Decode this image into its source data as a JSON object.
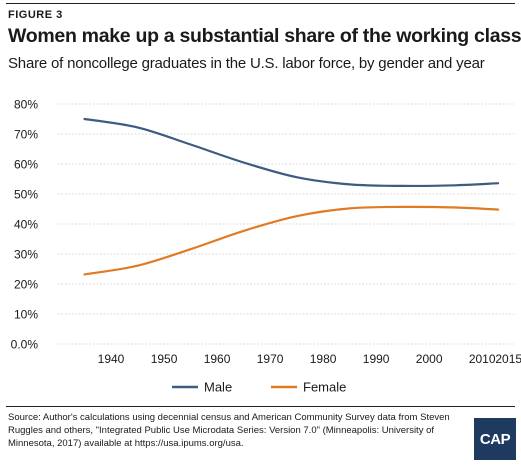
{
  "figure_label": "FIGURE 3",
  "title": "Women make up a substantial share of the working class",
  "subtitle": "Share of noncollege graduates in the U.S. labor force, by gender and year",
  "source": "Source: Author's calculations using decennial census and American Community Survey data from Steven Ruggles and others, \"Integrated Public Use Microdata Series: Version 7.0\" (Minneapolis: University of Minnesota, 2017) available at https://usa.ipums.org/usa.",
  "logo_text": "CAP",
  "chart_data": {
    "type": "line",
    "x": [
      1935,
      1945,
      1955,
      1965,
      1975,
      1985,
      1995,
      2005,
      2013
    ],
    "series": [
      {
        "name": "Male",
        "color": "#3d5c80",
        "values": [
          75.0,
          72.2,
          66.5,
          60.5,
          55.6,
          53.2,
          52.7,
          52.9,
          53.6
        ]
      },
      {
        "name": "Female",
        "color": "#e07b24",
        "values": [
          23.2,
          26.1,
          31.6,
          37.7,
          42.6,
          45.2,
          45.7,
          45.5,
          44.8
        ]
      }
    ],
    "xticks": [
      1940,
      1950,
      1960,
      1970,
      1980,
      1990,
      2000,
      2010,
      2015
    ],
    "yticks": [
      0,
      10,
      20,
      30,
      40,
      50,
      60,
      70,
      80
    ],
    "ytick_labels": [
      "0.0%",
      "10%",
      "20%",
      "30%",
      "40%",
      "50%",
      "60%",
      "70%",
      "80%"
    ],
    "xlim": [
      1930,
      2016
    ],
    "ylim": [
      0,
      80
    ],
    "grid": true,
    "legend_position": "bottom-center"
  }
}
